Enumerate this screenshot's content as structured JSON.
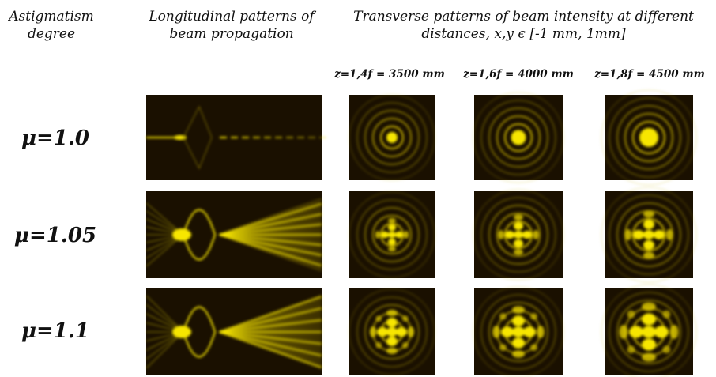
{
  "headers": [
    "Astigmatism degree",
    "Longitudinal patterns of beam propagation",
    "Transverse patterns of beam intensity at different distances, x,y ϵ [-1 mm, 1mm]"
  ],
  "distances": [
    "z=1,4f = 3500 mm",
    "z=1,6f = 4000 mm",
    "z=1,8f = 4500 mm"
  ],
  "rows": [
    "μ=1.0",
    "μ=1.05",
    "μ=1.1"
  ]
}
